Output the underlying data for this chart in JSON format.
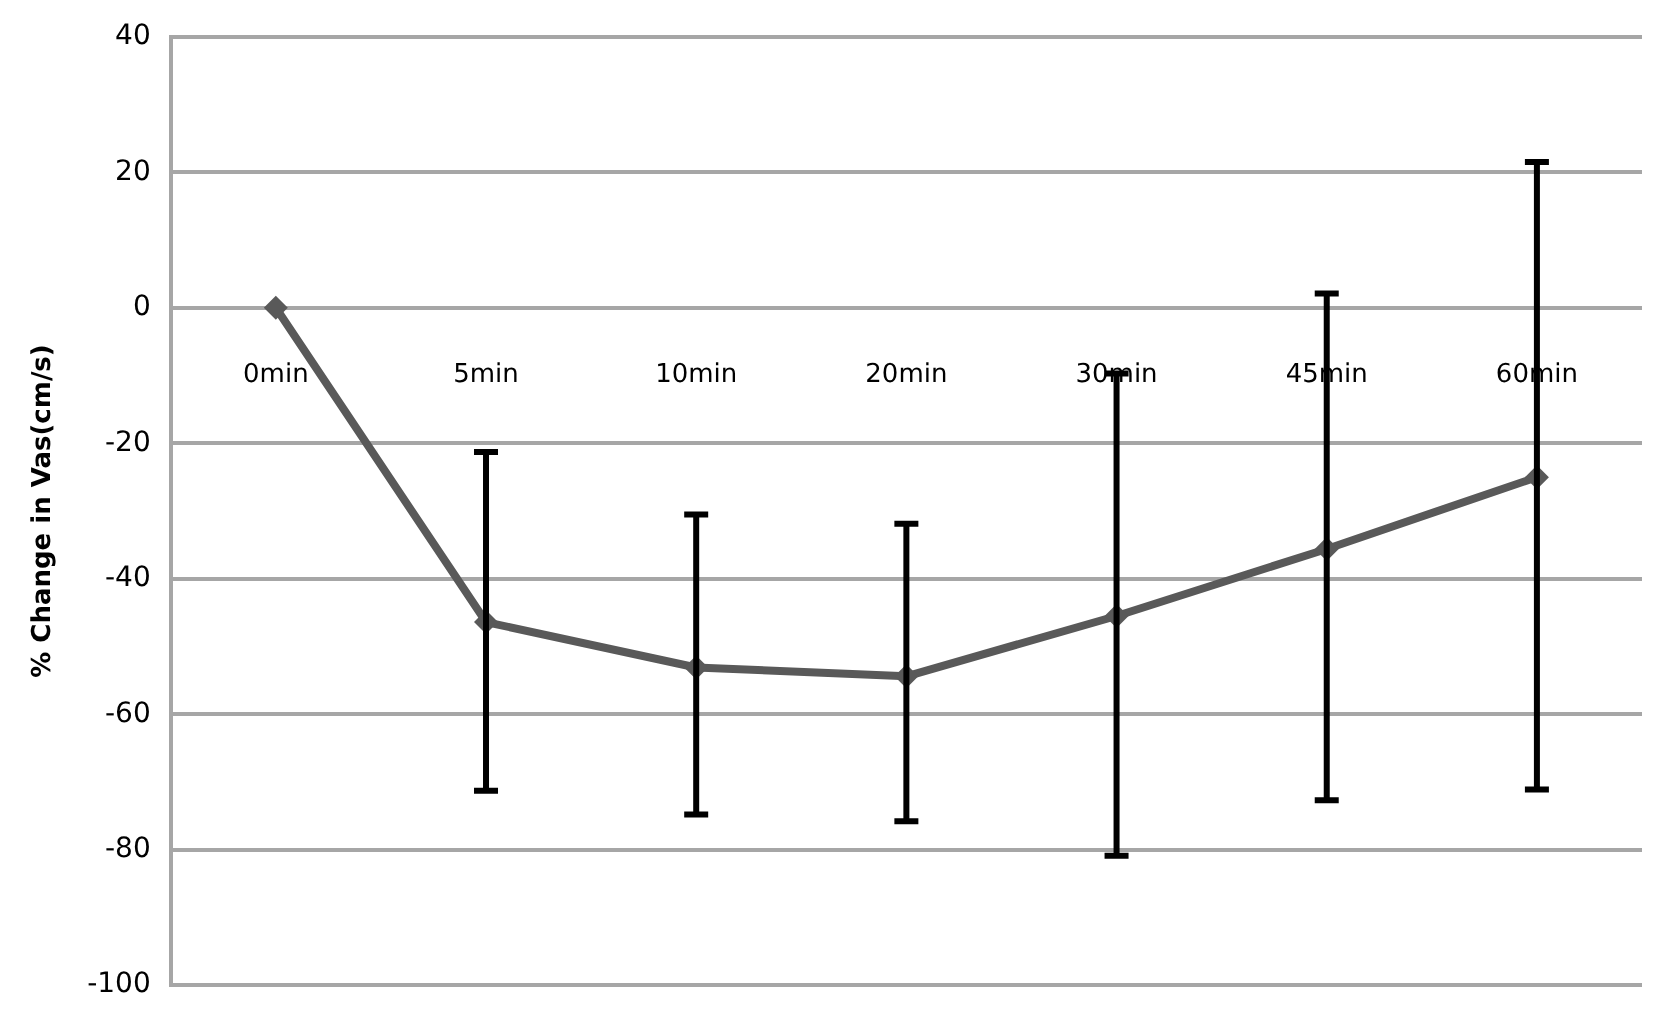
{
  "chart_data": {
    "type": "line",
    "ylabel": "% Change in Vas(cm/s)",
    "categories": [
      "0min",
      "5min",
      "10min",
      "20min",
      "30min",
      "45min",
      "60min"
    ],
    "series": [
      {
        "color": "#595959",
        "values": [
          0,
          -46.4,
          -53.1,
          -54.4,
          -45.5,
          -35.6,
          -25.0
        ],
        "errors": [
          null,
          [
            -71.3,
            -21.3
          ],
          [
            -74.8,
            -30.5
          ],
          [
            -75.8,
            -31.9
          ],
          [
            -80.9,
            -9.7
          ],
          [
            -72.7,
            2.1
          ],
          [
            -71.1,
            21.5
          ]
        ]
      }
    ],
    "ylim": [
      -100,
      40
    ],
    "yticks": [
      -100,
      -80,
      -60,
      -40,
      -20,
      0,
      20,
      40
    ],
    "grid": "y",
    "marker": "diamond",
    "line_style": "solid",
    "legend": false
  }
}
